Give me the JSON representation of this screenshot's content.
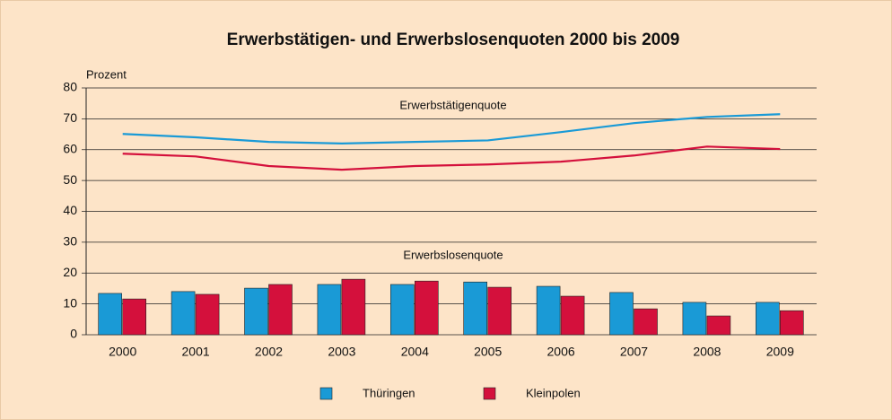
{
  "chart_data": {
    "type": "bar_line",
    "title": "Erwerbstätigen- und Erwerbslosenquoten 2000 bis 2009",
    "y_label": "Prozent",
    "annotations": [
      "Erwerbstätigenquote",
      "Erwerbslosenquote"
    ],
    "categories": [
      "2000",
      "2001",
      "2002",
      "2003",
      "2004",
      "2005",
      "2006",
      "2007",
      "2008",
      "2009"
    ],
    "series": [
      {
        "name": "Thüringen",
        "type": "bar",
        "color": "#1a9ad6",
        "values": [
          13.4,
          14,
          15.1,
          16.3,
          16.3,
          17.1,
          15.7,
          13.7,
          10.5,
          10.5
        ]
      },
      {
        "name": "Kleinpolen",
        "type": "bar",
        "color": "#d4103c",
        "values": [
          11.6,
          13.1,
          16.3,
          18,
          17.4,
          15.4,
          12.5,
          8.4,
          6.1,
          7.8
        ]
      },
      {
        "name": "Thüringen",
        "type": "line",
        "color": "#1a9ad6",
        "values": [
          65.1,
          64,
          62.5,
          62,
          62.5,
          63,
          65.7,
          68.6,
          70.6,
          71.5
        ]
      },
      {
        "name": "Kleinpolen",
        "type": "line",
        "color": "#d4103c",
        "values": [
          58.7,
          57.8,
          54.7,
          53.5,
          54.7,
          55.2,
          56.1,
          58.1,
          61,
          60.2
        ]
      }
    ],
    "ylim": [
      0,
      80
    ],
    "yticks": [
      0,
      10,
      20,
      30,
      40,
      50,
      60,
      70,
      80
    ],
    "grid": true
  }
}
